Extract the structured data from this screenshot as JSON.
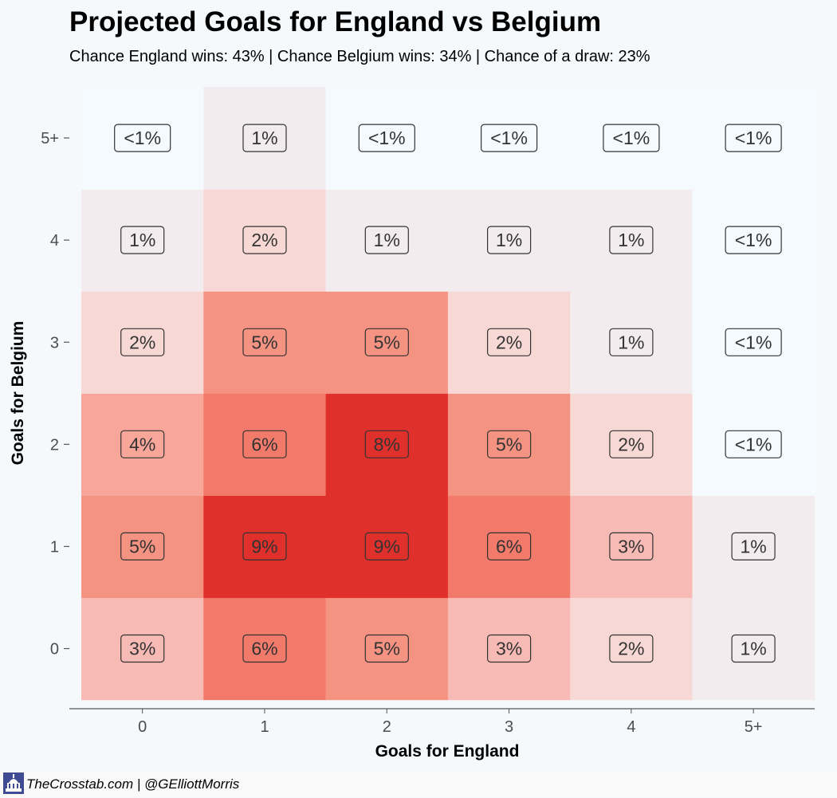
{
  "chart_data": {
    "type": "heatmap",
    "title": "Projected Goals for England vs Belgium",
    "subtitle": "Chance England wins: 43% | Chance Belgium wins: 34% | Chance of a draw: 23%",
    "xlabel": "Goals for England",
    "ylabel": "Goals for Belgium",
    "x_categories": [
      "0",
      "1",
      "2",
      "3",
      "4",
      "5+"
    ],
    "y_categories": [
      "0",
      "1",
      "2",
      "3",
      "4",
      "5+"
    ],
    "cells": [
      {
        "x": "0",
        "y": "0",
        "value": 3,
        "label": "3%"
      },
      {
        "x": "1",
        "y": "0",
        "value": 6,
        "label": "6%"
      },
      {
        "x": "2",
        "y": "0",
        "value": 5,
        "label": "5%"
      },
      {
        "x": "3",
        "y": "0",
        "value": 3,
        "label": "3%"
      },
      {
        "x": "4",
        "y": "0",
        "value": 2,
        "label": "2%"
      },
      {
        "x": "5+",
        "y": "0",
        "value": 1,
        "label": "1%"
      },
      {
        "x": "0",
        "y": "1",
        "value": 5,
        "label": "5%"
      },
      {
        "x": "1",
        "y": "1",
        "value": 9,
        "label": "9%"
      },
      {
        "x": "2",
        "y": "1",
        "value": 9,
        "label": "9%"
      },
      {
        "x": "3",
        "y": "1",
        "value": 6,
        "label": "6%"
      },
      {
        "x": "4",
        "y": "1",
        "value": 3,
        "label": "3%"
      },
      {
        "x": "5+",
        "y": "1",
        "value": 1,
        "label": "1%"
      },
      {
        "x": "0",
        "y": "2",
        "value": 4,
        "label": "4%"
      },
      {
        "x": "1",
        "y": "2",
        "value": 6,
        "label": "6%"
      },
      {
        "x": "2",
        "y": "2",
        "value": 8,
        "label": "8%"
      },
      {
        "x": "3",
        "y": "2",
        "value": 5,
        "label": "5%"
      },
      {
        "x": "4",
        "y": "2",
        "value": 2,
        "label": "2%"
      },
      {
        "x": "5+",
        "y": "2",
        "value": 0.4,
        "label": "<1%"
      },
      {
        "x": "0",
        "y": "3",
        "value": 2,
        "label": "2%"
      },
      {
        "x": "1",
        "y": "3",
        "value": 5,
        "label": "5%"
      },
      {
        "x": "2",
        "y": "3",
        "value": 5,
        "label": "5%"
      },
      {
        "x": "3",
        "y": "3",
        "value": 2,
        "label": "2%"
      },
      {
        "x": "4",
        "y": "3",
        "value": 1,
        "label": "1%"
      },
      {
        "x": "5+",
        "y": "3",
        "value": 0.4,
        "label": "<1%"
      },
      {
        "x": "0",
        "y": "4",
        "value": 1,
        "label": "1%"
      },
      {
        "x": "1",
        "y": "4",
        "value": 2,
        "label": "2%"
      },
      {
        "x": "2",
        "y": "4",
        "value": 1,
        "label": "1%"
      },
      {
        "x": "3",
        "y": "4",
        "value": 1,
        "label": "1%"
      },
      {
        "x": "4",
        "y": "4",
        "value": 1,
        "label": "1%"
      },
      {
        "x": "5+",
        "y": "4",
        "value": 0.4,
        "label": "<1%"
      },
      {
        "x": "0",
        "y": "5+",
        "value": 0.4,
        "label": "<1%"
      },
      {
        "x": "1",
        "y": "5+",
        "value": 1,
        "label": "1%"
      },
      {
        "x": "2",
        "y": "5+",
        "value": 0.4,
        "label": "<1%"
      },
      {
        "x": "3",
        "y": "5+",
        "value": 0.4,
        "label": "<1%"
      },
      {
        "x": "4",
        "y": "5+",
        "value": 0.4,
        "label": "<1%"
      },
      {
        "x": "5+",
        "y": "5+",
        "value": 0.4,
        "label": "<1%"
      }
    ],
    "color_scale": {
      "low": "#f5faff",
      "high": "#e0302c",
      "mid_levels": [
        "#f2ecee",
        "#f8d8d5",
        "#f8bab4",
        "#f7a699",
        "#f59383",
        "#f27a6a",
        "#ea5346",
        "#e0302c"
      ]
    },
    "legend": "none",
    "grid": false
  },
  "footer": {
    "text": "TheCrosstab.com | @GElliottMorris",
    "logo_icon": "capitol-building-icon"
  }
}
